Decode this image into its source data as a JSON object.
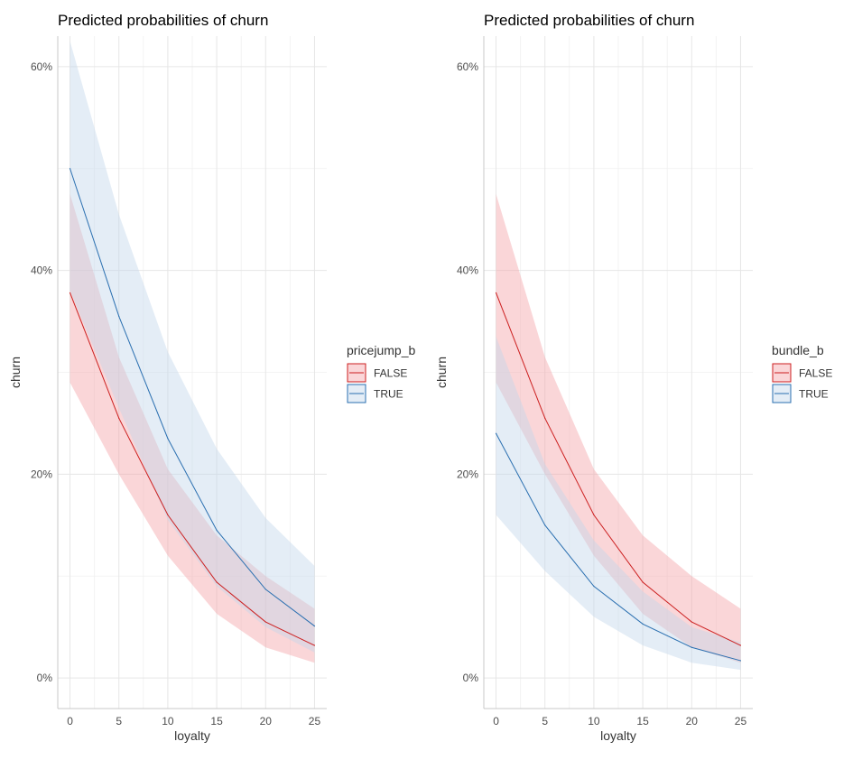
{
  "chart_data": [
    {
      "type": "line",
      "title": "Predicted probabilities of churn",
      "xlabel": "loyalty",
      "ylabel": "churn",
      "legend_title": "pricejump_b",
      "legend_position": "right",
      "xlim": [
        -1.25,
        26.25
      ],
      "ylim": [
        -3,
        63
      ],
      "x_ticks": [
        {
          "value": 0,
          "label": "0"
        },
        {
          "value": 5,
          "label": "5"
        },
        {
          "value": 10,
          "label": "10"
        },
        {
          "value": 15,
          "label": "15"
        },
        {
          "value": 20,
          "label": "20"
        },
        {
          "value": 25,
          "label": "25"
        }
      ],
      "y_ticks": [
        {
          "value": 0,
          "label": "0%"
        },
        {
          "value": 20,
          "label": "20%"
        },
        {
          "value": 40,
          "label": "40%"
        },
        {
          "value": 60,
          "label": "60%"
        }
      ],
      "grid": true,
      "x": [
        0,
        5,
        10,
        15,
        20,
        25
      ],
      "series": [
        {
          "name": "FALSE",
          "color": "#cc1f1f",
          "fill": "#f4a3a8",
          "values": [
            37.8,
            25.5,
            16.0,
            9.4,
            5.5,
            3.2
          ],
          "lower": [
            29.0,
            20.0,
            12.0,
            6.3,
            3.0,
            1.5
          ],
          "upper": [
            47.5,
            31.5,
            20.5,
            14.0,
            10.0,
            6.8
          ]
        },
        {
          "name": "TRUE",
          "color": "#2a6fb0",
          "fill": "#c3d7ec",
          "values": [
            50.0,
            35.5,
            23.5,
            14.5,
            8.7,
            5.1
          ],
          "lower": [
            38.0,
            26.5,
            15.5,
            9.0,
            5.0,
            2.5
          ],
          "upper": [
            62.5,
            45.5,
            32.0,
            22.5,
            15.7,
            11.0
          ]
        }
      ]
    },
    {
      "type": "line",
      "title": "Predicted probabilities of churn",
      "xlabel": "loyalty",
      "ylabel": "churn",
      "legend_title": "bundle_b",
      "legend_position": "right",
      "xlim": [
        -1.25,
        26.25
      ],
      "ylim": [
        -3,
        63
      ],
      "x_ticks": [
        {
          "value": 0,
          "label": "0"
        },
        {
          "value": 5,
          "label": "5"
        },
        {
          "value": 10,
          "label": "10"
        },
        {
          "value": 15,
          "label": "15"
        },
        {
          "value": 20,
          "label": "20"
        },
        {
          "value": 25,
          "label": "25"
        }
      ],
      "y_ticks": [
        {
          "value": 0,
          "label": "0%"
        },
        {
          "value": 20,
          "label": "20%"
        },
        {
          "value": 40,
          "label": "40%"
        },
        {
          "value": 60,
          "label": "60%"
        }
      ],
      "grid": true,
      "x": [
        0,
        5,
        10,
        15,
        20,
        25
      ],
      "series": [
        {
          "name": "FALSE",
          "color": "#cc1f1f",
          "fill": "#f4a3a8",
          "values": [
            37.8,
            25.5,
            16.0,
            9.4,
            5.5,
            3.2
          ],
          "lower": [
            29.0,
            20.0,
            12.0,
            6.3,
            3.0,
            1.5
          ],
          "upper": [
            47.5,
            31.5,
            20.5,
            14.0,
            10.0,
            6.8
          ]
        },
        {
          "name": "TRUE",
          "color": "#2a6fb0",
          "fill": "#c3d7ec",
          "values": [
            24.0,
            15.0,
            9.0,
            5.3,
            3.0,
            1.7
          ],
          "lower": [
            16.0,
            10.5,
            6.0,
            3.2,
            1.5,
            0.8
          ],
          "upper": [
            33.5,
            21.0,
            13.5,
            8.5,
            5.0,
            3.5
          ]
        }
      ]
    }
  ]
}
